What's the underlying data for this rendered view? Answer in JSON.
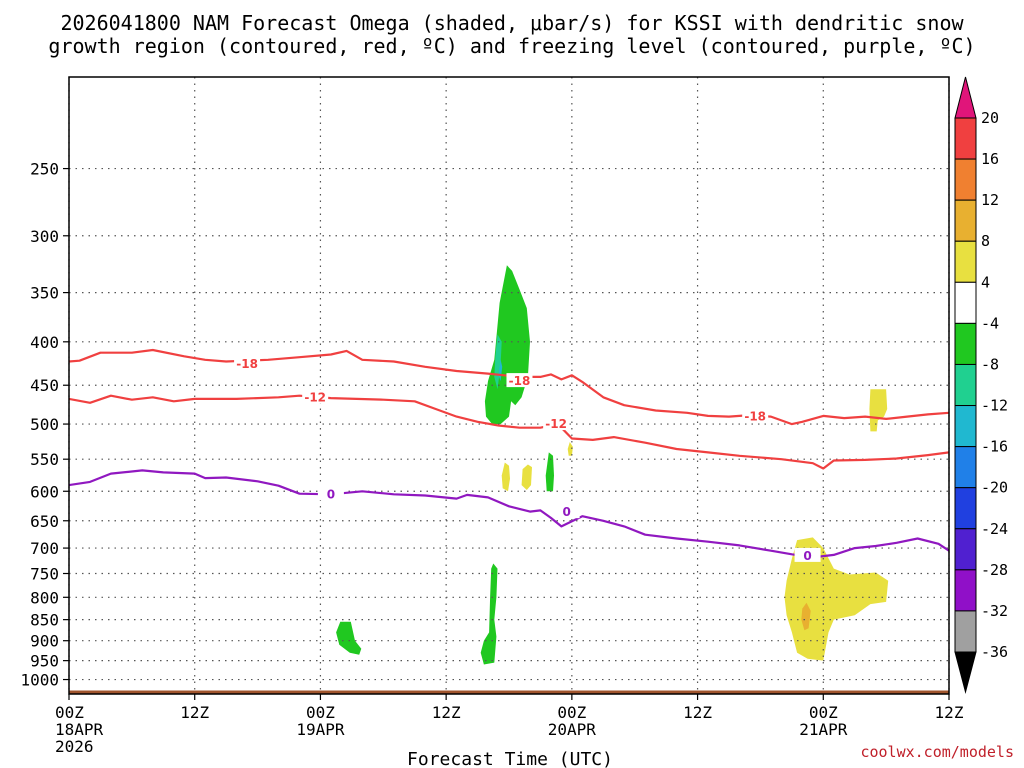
{
  "title": {
    "line1": "2026041800 NAM Forecast Omega (shaded, μbar/s) for KSSI with dendritic snow",
    "line2": "growth region (contoured, red, ºC) and freezing level (contoured, purple, ºC)"
  },
  "credit": "coolwx.com/models",
  "chart_data": {
    "type": "time-height contour",
    "title": "2026041800 NAM Forecast Omega (shaded, μbar/s) for KSSI with dendritic snow growth region (contoured, red, ºC) and freezing level (contoured, purple, ºC)",
    "xlabel": "Forecast Time (UTC)",
    "ylabel": "",
    "x_range_hours": [
      0,
      84
    ],
    "y_scale": "log-pressure (hPa), inverted",
    "y_range_hPa": [
      195,
      1040
    ],
    "x_ticks": [
      {
        "hour": 0,
        "lines": [
          "00Z",
          "18APR",
          "2026"
        ]
      },
      {
        "hour": 12,
        "lines": [
          "12Z"
        ]
      },
      {
        "hour": 24,
        "lines": [
          "00Z",
          "19APR"
        ]
      },
      {
        "hour": 36,
        "lines": [
          "12Z"
        ]
      },
      {
        "hour": 48,
        "lines": [
          "00Z",
          "20APR"
        ]
      },
      {
        "hour": 60,
        "lines": [
          "12Z"
        ]
      },
      {
        "hour": 72,
        "lines": [
          "00Z",
          "21APR"
        ]
      },
      {
        "hour": 84,
        "lines": [
          "12Z"
        ]
      }
    ],
    "y_ticks": [
      250,
      300,
      350,
      400,
      450,
      500,
      550,
      600,
      650,
      700,
      750,
      800,
      850,
      900,
      950,
      1000
    ],
    "grid": true,
    "colorbar": {
      "labels": [
        "20",
        "16",
        "12",
        "8",
        "4",
        "-4",
        "-8",
        "-12",
        "-16",
        "-20",
        "-24",
        "-28",
        "-32",
        "-36"
      ],
      "bins": [
        {
          "range": "> 20",
          "color": "#e0157a"
        },
        {
          "range": "16 to 20",
          "color": "#f04040"
        },
        {
          "range": "12 to 16",
          "color": "#f08030"
        },
        {
          "range": "8 to 12",
          "color": "#e8b030"
        },
        {
          "range": "4 to 8",
          "color": "#e8e040"
        },
        {
          "range": "-4 to 4",
          "color": "#ffffff"
        },
        {
          "range": "-8 to -4",
          "color": "#20c820"
        },
        {
          "range": "-12 to -8",
          "color": "#20d090"
        },
        {
          "range": "-16 to -12",
          "color": "#20b8d0"
        },
        {
          "range": "-20 to -16",
          "color": "#2080e8"
        },
        {
          "range": "-24 to -20",
          "color": "#2040e0"
        },
        {
          "range": "-28 to -24",
          "color": "#5020d0"
        },
        {
          "range": "-32 to -28",
          "color": "#9010c8"
        },
        {
          "range": "-36 to -32",
          "color": "#a0a0a0"
        },
        {
          "range": "< -36",
          "color": "#000000"
        }
      ]
    },
    "contours": [
      {
        "level": -18,
        "color": "#f04040",
        "labels": [
          {
            "text": "-18",
            "hour": 17,
            "hPa": 425
          },
          {
            "text": "-18",
            "hour": 43,
            "hPa": 445
          },
          {
            "text": "-18",
            "hour": 65.5,
            "hPa": 490
          }
        ],
        "points": [
          [
            0,
            422
          ],
          [
            1,
            421
          ],
          [
            3,
            412
          ],
          [
            6,
            412
          ],
          [
            8,
            409
          ],
          [
            11,
            416
          ],
          [
            13,
            420
          ],
          [
            15,
            422
          ],
          [
            19,
            420
          ],
          [
            22,
            417
          ],
          [
            25,
            414
          ],
          [
            26.5,
            410
          ],
          [
            28,
            420
          ],
          [
            31,
            422
          ],
          [
            34,
            428
          ],
          [
            37,
            433
          ],
          [
            40,
            436
          ],
          [
            43,
            440
          ],
          [
            45,
            440
          ],
          [
            46,
            437
          ],
          [
            47,
            443
          ],
          [
            48,
            438
          ],
          [
            49,
            446
          ],
          [
            51,
            465
          ],
          [
            53,
            475
          ],
          [
            56,
            482
          ],
          [
            59,
            485
          ],
          [
            61,
            489
          ],
          [
            63,
            490
          ],
          [
            65,
            488
          ],
          [
            67,
            490
          ],
          [
            69,
            500
          ],
          [
            70,
            497
          ],
          [
            72,
            489
          ],
          [
            74,
            492
          ],
          [
            76,
            490
          ],
          [
            78,
            493
          ],
          [
            80,
            490
          ],
          [
            82,
            487
          ],
          [
            84,
            485
          ]
        ]
      },
      {
        "level": -12,
        "color": "#f04040",
        "labels": [
          {
            "text": "-12",
            "hour": 23.5,
            "hPa": 465
          },
          {
            "text": "-12",
            "hour": 46.5,
            "hPa": 500
          }
        ],
        "points": [
          [
            0,
            467
          ],
          [
            2,
            472
          ],
          [
            4,
            463
          ],
          [
            6,
            468
          ],
          [
            8,
            465
          ],
          [
            10,
            470
          ],
          [
            12,
            467
          ],
          [
            16,
            467
          ],
          [
            20,
            465
          ],
          [
            22,
            463
          ],
          [
            25,
            466
          ],
          [
            30,
            468
          ],
          [
            33,
            470
          ],
          [
            35,
            480
          ],
          [
            37,
            490
          ],
          [
            39,
            497
          ],
          [
            41,
            502
          ],
          [
            43,
            505
          ],
          [
            45,
            505
          ],
          [
            46,
            502
          ],
          [
            47,
            505
          ],
          [
            48,
            520
          ],
          [
            50,
            522
          ],
          [
            52,
            518
          ],
          [
            55,
            526
          ],
          [
            58,
            535
          ],
          [
            61,
            540
          ],
          [
            64,
            545
          ],
          [
            68,
            550
          ],
          [
            71,
            556
          ],
          [
            72,
            564
          ],
          [
            73,
            552
          ],
          [
            76,
            551
          ],
          [
            79,
            549
          ],
          [
            82,
            544
          ],
          [
            84,
            540
          ]
        ]
      },
      {
        "level": 0,
        "color": "#9018c0",
        "labels": [
          {
            "text": "0",
            "hour": 25,
            "hPa": 605
          },
          {
            "text": "0",
            "hour": 47.5,
            "hPa": 635
          },
          {
            "text": "0",
            "hour": 70.5,
            "hPa": 715
          }
        ],
        "points": [
          [
            0,
            590
          ],
          [
            2,
            585
          ],
          [
            4,
            572
          ],
          [
            7,
            567
          ],
          [
            9,
            570
          ],
          [
            12,
            572
          ],
          [
            13,
            579
          ],
          [
            15,
            578
          ],
          [
            18,
            584
          ],
          [
            20,
            591
          ],
          [
            22,
            604
          ],
          [
            25,
            605
          ],
          [
            28,
            600
          ],
          [
            31,
            605
          ],
          [
            34,
            607
          ],
          [
            37,
            612
          ],
          [
            38,
            606
          ],
          [
            40,
            610
          ],
          [
            42,
            625
          ],
          [
            44,
            634
          ],
          [
            45,
            632
          ],
          [
            46,
            645
          ],
          [
            47,
            660
          ],
          [
            49,
            642
          ],
          [
            51,
            650
          ],
          [
            53,
            660
          ],
          [
            55,
            675
          ],
          [
            58,
            682
          ],
          [
            61,
            688
          ],
          [
            64,
            695
          ],
          [
            67,
            705
          ],
          [
            69,
            712
          ],
          [
            71,
            718
          ],
          [
            73,
            713
          ],
          [
            75,
            700
          ],
          [
            77,
            696
          ],
          [
            79,
            690
          ],
          [
            81,
            682
          ],
          [
            83,
            692
          ],
          [
            84,
            705
          ]
        ]
      }
    ],
    "shaded_regions": [
      {
        "bin": "-8 to -4",
        "polygon": [
          [
            41.8,
            325
          ],
          [
            42.3,
            330
          ],
          [
            43.0,
            347
          ],
          [
            43.7,
            365
          ],
          [
            44.0,
            400
          ],
          [
            43.8,
            440
          ],
          [
            43.2,
            465
          ],
          [
            42.6,
            475
          ],
          [
            42.2,
            470
          ],
          [
            42.0,
            490
          ],
          [
            41.2,
            500
          ],
          [
            40.4,
            500
          ],
          [
            39.8,
            490
          ],
          [
            39.7,
            470
          ],
          [
            40.0,
            445
          ],
          [
            40.6,
            420
          ],
          [
            41.1,
            360
          ]
        ]
      },
      {
        "bin": "-12 to -8",
        "polygon": [
          [
            40.9,
            392
          ],
          [
            41.3,
            400
          ],
          [
            41.2,
            425
          ],
          [
            40.9,
            455
          ],
          [
            40.6,
            440
          ],
          [
            40.7,
            415
          ]
        ]
      },
      {
        "bin": "-16 to -12",
        "polygon": [
          [
            41.2,
            420
          ],
          [
            41.35,
            428
          ],
          [
            41.2,
            445
          ],
          [
            41.0,
            438
          ]
        ]
      },
      {
        "bin": "4 to 8",
        "polygon": [
          [
            43.8,
            558
          ],
          [
            44.2,
            562
          ],
          [
            44.1,
            590
          ],
          [
            43.7,
            598
          ],
          [
            43.2,
            590
          ],
          [
            43.3,
            565
          ]
        ]
      },
      {
        "bin": "-8 to -4",
        "polygon": [
          [
            45.8,
            540
          ],
          [
            46.2,
            545
          ],
          [
            46.3,
            575
          ],
          [
            46.2,
            600
          ],
          [
            45.6,
            600
          ],
          [
            45.5,
            575
          ]
        ]
      },
      {
        "bin": "4 to 8",
        "polygon": [
          [
            41.6,
            555
          ],
          [
            42.0,
            560
          ],
          [
            42.1,
            580
          ],
          [
            41.9,
            600
          ],
          [
            41.4,
            595
          ],
          [
            41.3,
            575
          ]
        ]
      },
      {
        "bin": "4 to 8",
        "polygon": [
          [
            47.8,
            525
          ],
          [
            48.1,
            532
          ],
          [
            48.0,
            545
          ],
          [
            47.7,
            545
          ],
          [
            47.6,
            535
          ]
        ]
      },
      {
        "bin": "-8 to -4",
        "polygon": [
          [
            25.9,
            855
          ],
          [
            26.9,
            855
          ],
          [
            27.3,
            900
          ],
          [
            27.9,
            920
          ],
          [
            27.7,
            935
          ],
          [
            26.8,
            930
          ],
          [
            25.8,
            910
          ],
          [
            25.5,
            880
          ]
        ]
      },
      {
        "bin": "-8 to -4",
        "polygon": [
          [
            40.5,
            730
          ],
          [
            40.9,
            740
          ],
          [
            40.8,
            800
          ],
          [
            40.6,
            850
          ],
          [
            40.8,
            890
          ],
          [
            40.6,
            955
          ],
          [
            39.6,
            960
          ],
          [
            39.3,
            930
          ],
          [
            39.6,
            900
          ],
          [
            40.1,
            880
          ],
          [
            40.2,
            800
          ],
          [
            40.3,
            740
          ]
        ]
      },
      {
        "bin": "4 to 8",
        "polygon": [
          [
            69.5,
            685
          ],
          [
            71.0,
            680
          ],
          [
            72.0,
            700
          ],
          [
            73.0,
            740
          ],
          [
            74.5,
            752
          ],
          [
            77.0,
            748
          ],
          [
            78.2,
            765
          ],
          [
            78.0,
            810
          ],
          [
            76.5,
            815
          ],
          [
            75.0,
            840
          ],
          [
            73.0,
            850
          ],
          [
            72.5,
            880
          ],
          [
            72.0,
            950
          ],
          [
            70.5,
            945
          ],
          [
            69.5,
            930
          ],
          [
            69.0,
            880
          ],
          [
            68.5,
            840
          ],
          [
            68.3,
            800
          ],
          [
            68.5,
            765
          ],
          [
            69.0,
            720
          ]
        ]
      },
      {
        "bin": "8 to 12",
        "polygon": [
          [
            70.4,
            812
          ],
          [
            70.8,
            830
          ],
          [
            70.6,
            870
          ],
          [
            70.2,
            875
          ],
          [
            69.9,
            850
          ],
          [
            70.0,
            825
          ]
        ]
      },
      {
        "bin": "4 to 8",
        "polygon": [
          [
            76.5,
            455
          ],
          [
            78.0,
            455
          ],
          [
            78.1,
            480
          ],
          [
            77.8,
            490
          ],
          [
            77.2,
            495
          ],
          [
            77.1,
            510
          ],
          [
            76.5,
            510
          ],
          [
            76.4,
            480
          ]
        ]
      }
    ],
    "terrain": {
      "color": "#a0552d",
      "surface_hPa": 1030
    }
  }
}
